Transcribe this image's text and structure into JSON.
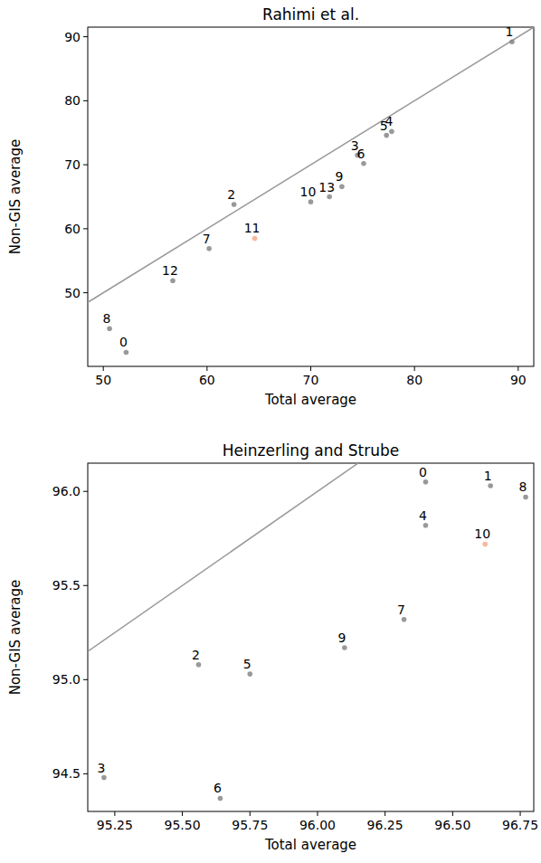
{
  "chart_data": [
    {
      "type": "scatter",
      "title": "Rahimi et al.",
      "x_label": "Total average",
      "y_label": "Non-GIS average",
      "categories": [
        "0",
        "1",
        "2",
        "3",
        "4",
        "5",
        "6",
        "7",
        "8",
        "9",
        "10",
        "11",
        "12",
        "13"
      ],
      "x": [
        52.2,
        89.4,
        62.6,
        74.5,
        77.8,
        77.3,
        75.1,
        60.2,
        50.6,
        73.0,
        70.0,
        64.6,
        56.7,
        71.8
      ],
      "values": [
        40.7,
        89.2,
        63.8,
        71.5,
        75.2,
        74.6,
        70.2,
        56.9,
        44.4,
        66.6,
        64.2,
        58.5,
        51.9,
        65.0
      ],
      "colors": [
        "#808080",
        "#808080",
        "#808080",
        "#808080",
        "#808080",
        "#808080",
        "#808080",
        "#808080",
        "#808080",
        "#808080",
        "#808080",
        "#f4a582",
        "#808080",
        "#808080"
      ],
      "xlim": [
        48.5,
        91.5
      ],
      "ylim": [
        38.5,
        91.5
      ],
      "xticks": [
        50,
        60,
        70,
        80,
        90
      ],
      "yticks": [
        50,
        60,
        70,
        80,
        90
      ]
    },
    {
      "type": "scatter",
      "title": "Heinzerling and Strube",
      "x_label": "Total average",
      "y_label": "Non-GIS average",
      "categories": [
        "0",
        "1",
        "2",
        "3",
        "4",
        "5",
        "6",
        "7",
        "8",
        "9",
        "10"
      ],
      "x": [
        96.4,
        96.64,
        95.56,
        95.21,
        96.4,
        95.75,
        95.64,
        96.32,
        96.77,
        96.1,
        96.62
      ],
      "values": [
        96.05,
        96.03,
        95.08,
        94.48,
        95.82,
        95.03,
        94.37,
        95.32,
        95.97,
        95.17,
        95.72
      ],
      "colors": [
        "#808080",
        "#808080",
        "#808080",
        "#808080",
        "#808080",
        "#808080",
        "#808080",
        "#808080",
        "#808080",
        "#808080",
        "#f4a582"
      ],
      "xlim": [
        95.15,
        96.8
      ],
      "ylim": [
        94.3,
        96.15
      ],
      "xticks": [
        95.25,
        {
          "value": 95.5,
          "label": "95.50"
        },
        95.75,
        {
          "value": 96.0,
          "label": "96.00"
        },
        96.25,
        {
          "value": 96.5,
          "label": "96.50"
        },
        96.75
      ],
      "yticks": [
        94.5,
        {
          "value": 95.0,
          "label": "95.0"
        },
        95.5,
        {
          "value": 96.0,
          "label": "96.0"
        }
      ]
    }
  ]
}
